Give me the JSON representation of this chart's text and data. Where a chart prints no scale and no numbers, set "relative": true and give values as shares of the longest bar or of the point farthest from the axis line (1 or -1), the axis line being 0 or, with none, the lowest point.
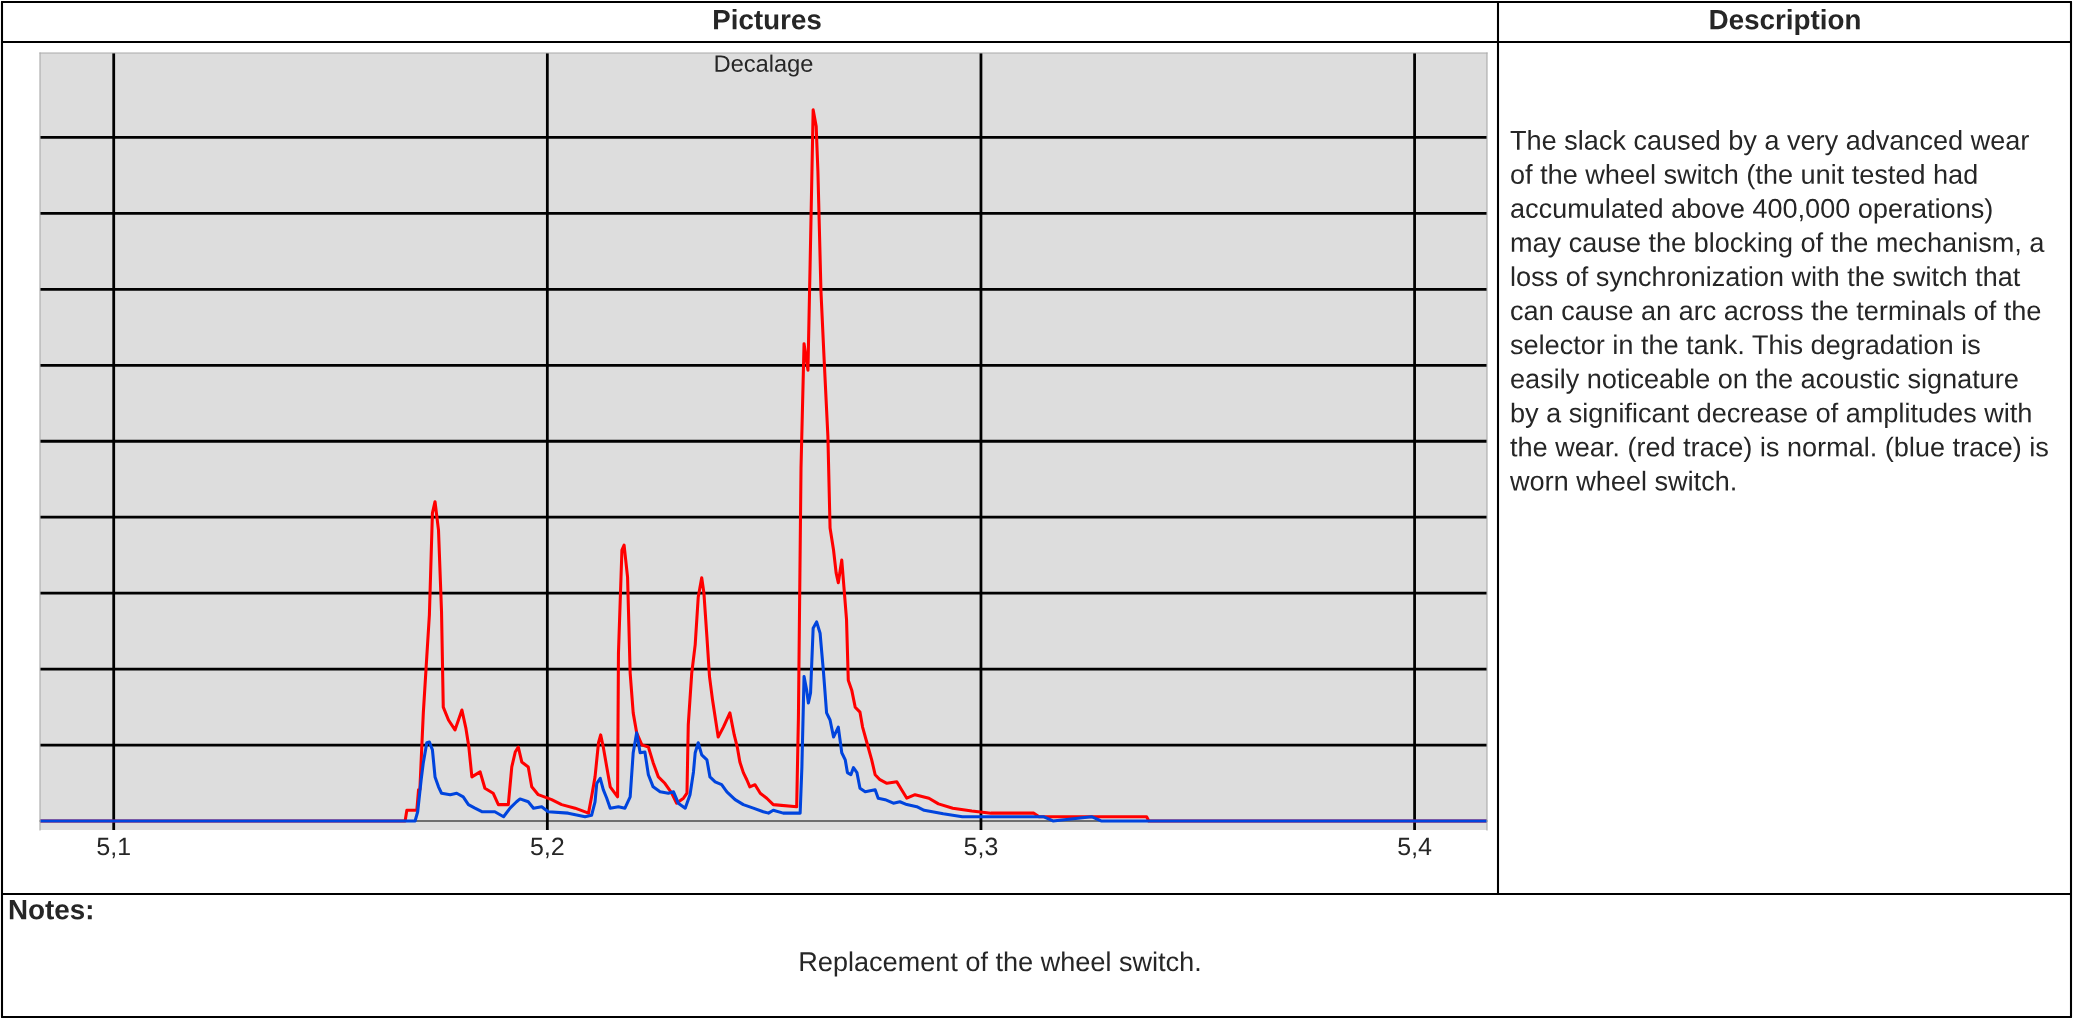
{
  "chart_data": {
    "type": "line",
    "title": "Decalage",
    "relative": true,
    "xlim": [
      5.083,
      5.4167
    ],
    "xticks": [
      {
        "value": 5.1,
        "label": "5,1"
      },
      {
        "value": 5.2,
        "label": "5,2"
      },
      {
        "value": 5.3,
        "label": "5,3"
      },
      {
        "value": 5.4,
        "label": "5,4"
      }
    ],
    "tick_labels": "x",
    "grid": true,
    "legend": false,
    "marker": "none",
    "line_style": "solid",
    "annotations": [
      "Pictures",
      "Description",
      "The slack caused by a very advanced wear of the wheel switch (the unit tested had accumulated above 400,000 operations) may cause the blocking of the mechanism, a loss of synchronization with the switch that can cause an arc across the terminals of the selector in the tank. This degradation is easily noticeable on the acoustic signature by a significant decrease of amplitudes with the wear. (red trace) is normal. (blue trace) is worn wheel switch.",
      "Notes:",
      "Replacement of the wheel switch."
    ],
    "series": [
      {
        "color": "#ff0000",
        "x": [
          5.083,
          5.1672,
          5.1676,
          5.1699,
          5.1703,
          5.1706,
          5.1714,
          5.1722,
          5.1728,
          5.1735,
          5.1741,
          5.1749,
          5.1756,
          5.176,
          5.1772,
          5.1787,
          5.1803,
          5.1812,
          5.1819,
          5.1826,
          5.1845,
          5.1856,
          5.1875,
          5.1887,
          5.191,
          5.1918,
          5.1926,
          5.1933,
          5.1941,
          5.1956,
          5.1964,
          5.1979,
          5.201,
          5.2033,
          5.2064,
          5.2095,
          5.2102,
          5.211,
          5.2118,
          5.2123,
          5.2129,
          5.2137,
          5.2145,
          5.2162,
          5.2164,
          5.2172,
          5.2177,
          5.2185,
          5.2191,
          5.2198,
          5.2206,
          5.2218,
          5.2233,
          5.2244,
          5.2256,
          5.2271,
          5.2287,
          5.2298,
          5.2314,
          5.2322,
          5.2325,
          5.2333,
          5.2341,
          5.2348,
          5.2356,
          5.2361,
          5.2368,
          5.2374,
          5.2381,
          5.2389,
          5.2394,
          5.2406,
          5.2421,
          5.2431,
          5.2438,
          5.2444,
          5.2452,
          5.246,
          5.2467,
          5.2479,
          5.2491,
          5.2506,
          5.2521,
          5.2575,
          5.2579,
          5.2585,
          5.2592,
          5.2601,
          5.2606,
          5.2613,
          5.262,
          5.2624,
          5.2631,
          5.2638,
          5.2647,
          5.2652,
          5.266,
          5.2666,
          5.2671,
          5.2679,
          5.2684,
          5.269,
          5.2694,
          5.2702,
          5.271,
          5.2721,
          5.2727,
          5.2737,
          5.2748,
          5.2756,
          5.2767,
          5.2783,
          5.2806,
          5.2817,
          5.2829,
          5.2848,
          5.288,
          5.2902,
          5.2935,
          5.2979,
          5.3023,
          5.3122,
          5.3134,
          5.3382,
          5.3387,
          5.3551,
          5.4167
        ],
        "values": [
          0,
          0,
          0.015,
          0.015,
          0.044,
          0.044,
          0.152,
          0.231,
          0.29,
          0.433,
          0.449,
          0.409,
          0.294,
          0.16,
          0.142,
          0.128,
          0.156,
          0.131,
          0.104,
          0.062,
          0.069,
          0.046,
          0.039,
          0.023,
          0.023,
          0.076,
          0.097,
          0.104,
          0.083,
          0.076,
          0.048,
          0.037,
          0.03,
          0.023,
          0.018,
          0.011,
          0.034,
          0.062,
          0.11,
          0.121,
          0.104,
          0.076,
          0.048,
          0.034,
          0.236,
          0.381,
          0.388,
          0.343,
          0.208,
          0.152,
          0.124,
          0.107,
          0.104,
          0.082,
          0.062,
          0.053,
          0.039,
          0.025,
          0.032,
          0.039,
          0.135,
          0.208,
          0.248,
          0.315,
          0.342,
          0.321,
          0.259,
          0.203,
          0.17,
          0.138,
          0.118,
          0.132,
          0.152,
          0.121,
          0.104,
          0.083,
          0.068,
          0.058,
          0.048,
          0.051,
          0.039,
          0.032,
          0.023,
          0.02,
          0.145,
          0.496,
          0.671,
          0.634,
          0.783,
          1.0,
          0.977,
          0.913,
          0.745,
          0.653,
          0.541,
          0.412,
          0.381,
          0.349,
          0.335,
          0.367,
          0.329,
          0.283,
          0.198,
          0.184,
          0.16,
          0.153,
          0.132,
          0.11,
          0.086,
          0.065,
          0.058,
          0.053,
          0.055,
          0.044,
          0.032,
          0.037,
          0.032,
          0.024,
          0.018,
          0.014,
          0.011,
          0.011,
          0.006,
          0.006,
          0,
          0,
          0
        ]
      },
      {
        "color": "#0044dd",
        "x": [
          5.083,
          5.1695,
          5.1701,
          5.1709,
          5.1714,
          5.1722,
          5.1728,
          5.1735,
          5.1741,
          5.1749,
          5.1756,
          5.1776,
          5.1791,
          5.1806,
          5.1818,
          5.1833,
          5.1849,
          5.1879,
          5.1899,
          5.1914,
          5.1929,
          5.1937,
          5.1956,
          5.1968,
          5.1987,
          5.2002,
          5.2048,
          5.2087,
          5.2102,
          5.211,
          5.2114,
          5.2122,
          5.2129,
          5.2137,
          5.2145,
          5.2164,
          5.2179,
          5.2191,
          5.2198,
          5.2206,
          5.2214,
          5.2225,
          5.2233,
          5.2244,
          5.226,
          5.2279,
          5.2291,
          5.2302,
          5.2318,
          5.2329,
          5.2337,
          5.2341,
          5.2348,
          5.2356,
          5.2368,
          5.2375,
          5.2387,
          5.2402,
          5.2414,
          5.2433,
          5.2452,
          5.2475,
          5.2498,
          5.251,
          5.2521,
          5.2544,
          5.2583,
          5.2587,
          5.2592,
          5.2598,
          5.2602,
          5.2607,
          5.2613,
          5.2621,
          5.2629,
          5.2637,
          5.2644,
          5.2652,
          5.266,
          5.2671,
          5.2679,
          5.2687,
          5.2692,
          5.27,
          5.2706,
          5.2714,
          5.2721,
          5.2733,
          5.2756,
          5.2763,
          5.2779,
          5.2798,
          5.2813,
          5.2829,
          5.2852,
          5.2869,
          5.2913,
          5.2957,
          5.3144,
          5.3166,
          5.3255,
          5.3277,
          5.4167
        ],
        "values": [
          0,
          0,
          0.013,
          0.058,
          0.082,
          0.11,
          0.111,
          0.1,
          0.062,
          0.048,
          0.039,
          0.037,
          0.039,
          0.034,
          0.023,
          0.018,
          0.013,
          0.013,
          0.006,
          0.018,
          0.027,
          0.031,
          0.027,
          0.018,
          0.02,
          0.013,
          0.011,
          0.006,
          0.008,
          0.027,
          0.053,
          0.06,
          0.044,
          0.032,
          0.018,
          0.02,
          0.018,
          0.034,
          0.096,
          0.124,
          0.096,
          0.097,
          0.065,
          0.048,
          0.041,
          0.039,
          0.041,
          0.025,
          0.018,
          0.037,
          0.069,
          0.096,
          0.11,
          0.093,
          0.086,
          0.062,
          0.055,
          0.051,
          0.041,
          0.03,
          0.023,
          0.018,
          0.013,
          0.011,
          0.015,
          0.011,
          0.011,
          0.075,
          0.203,
          0.184,
          0.166,
          0.18,
          0.271,
          0.28,
          0.264,
          0.208,
          0.152,
          0.142,
          0.118,
          0.132,
          0.096,
          0.086,
          0.068,
          0.065,
          0.075,
          0.068,
          0.046,
          0.041,
          0.044,
          0.032,
          0.03,
          0.025,
          0.027,
          0.023,
          0.02,
          0.015,
          0.01,
          0.006,
          0.006,
          0,
          0.006,
          0,
          0
        ]
      }
    ]
  }
}
